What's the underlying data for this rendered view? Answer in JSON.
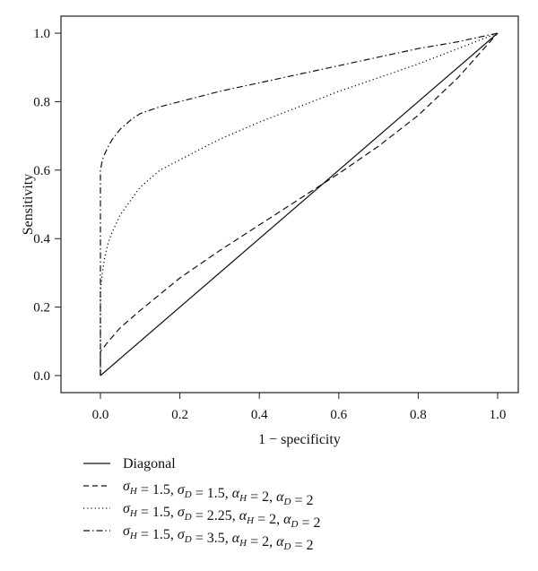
{
  "chart_data": {
    "type": "line",
    "title": "",
    "xlabel": "1 − specificity",
    "ylabel": "Sensitivity",
    "xlim": [
      0,
      1
    ],
    "ylim": [
      0,
      1
    ],
    "xticks": [
      "0.0",
      "0.2",
      "0.4",
      "0.6",
      "0.8",
      "1.0"
    ],
    "yticks": [
      "0.0",
      "0.2",
      "0.4",
      "0.6",
      "0.8",
      "1.0"
    ],
    "grid": false,
    "legend_position": "bottom",
    "series": [
      {
        "name": "Diagonal",
        "style": "solid",
        "x": [
          0,
          1
        ],
        "y": [
          0,
          1
        ]
      },
      {
        "name": "σH = 1.5, σD = 1.5, αH = 2, αD = 2",
        "style": "dashed",
        "x": [
          0,
          0,
          0.02,
          0.05,
          0.1,
          0.2,
          0.3,
          0.4,
          0.5,
          0.6,
          0.7,
          0.8,
          0.9,
          1
        ],
        "y": [
          0,
          0.07,
          0.1,
          0.14,
          0.19,
          0.285,
          0.365,
          0.44,
          0.515,
          0.59,
          0.67,
          0.76,
          0.87,
          1
        ]
      },
      {
        "name": "σH = 1.5, σD = 2.25, αH = 2, αD = 2",
        "style": "dotted",
        "x": [
          0,
          0,
          0.005,
          0.01,
          0.02,
          0.03,
          0.05,
          0.1,
          0.15,
          0.2,
          0.3,
          0.4,
          0.5,
          0.6,
          0.7,
          0.8,
          0.9,
          1
        ],
        "y": [
          0,
          0.25,
          0.3,
          0.34,
          0.39,
          0.42,
          0.47,
          0.55,
          0.6,
          0.63,
          0.69,
          0.74,
          0.785,
          0.83,
          0.87,
          0.91,
          0.955,
          1
        ]
      },
      {
        "name": "σH = 1.5, σD = 3.5, αH = 2, αD = 2",
        "style": "dashdot",
        "x": [
          0,
          0,
          0.005,
          0.01,
          0.02,
          0.03,
          0.05,
          0.08,
          0.1,
          0.15,
          0.2,
          0.3,
          0.4,
          0.5,
          0.6,
          0.7,
          0.8,
          0.9,
          1
        ],
        "y": [
          0,
          0.6,
          0.63,
          0.645,
          0.67,
          0.69,
          0.72,
          0.75,
          0.765,
          0.785,
          0.8,
          0.83,
          0.855,
          0.88,
          0.905,
          0.93,
          0.955,
          0.975,
          1
        ]
      }
    ]
  }
}
